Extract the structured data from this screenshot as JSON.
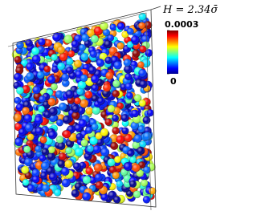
{
  "label": "H = 2.34σ̄",
  "colorbar": {
    "ticks": [
      0,
      0.0003
    ]
  }
}
